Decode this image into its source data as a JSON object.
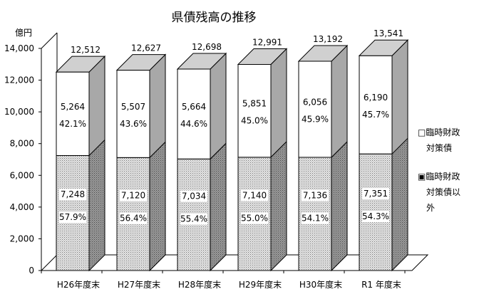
{
  "chart_data": {
    "type": "bar",
    "stacked": true,
    "style": "3d",
    "title": "県債残高の推移",
    "ylabel": "億円",
    "xlabel": "",
    "ylim": [
      0,
      14000
    ],
    "yticks": [
      "0",
      "2,000",
      "4,000",
      "6,000",
      "8,000",
      "10,000",
      "12,000",
      "14,000"
    ],
    "categories": [
      "H26年度末",
      "H27年度末",
      "H28年度末",
      "H29年度末",
      "H30年度末",
      "R1 年度末"
    ],
    "series": [
      {
        "name": "臨時財政対策債以外",
        "values": [
          7248,
          7120,
          7034,
          7140,
          7136,
          7351
        ],
        "value_labels": [
          "7,248",
          "7,120",
          "7,034",
          "7,140",
          "7,136",
          "7,351"
        ],
        "share_labels": [
          "57.9%",
          "56.4%",
          "55.4%",
          "55.0%",
          "54.1%",
          "54.3%"
        ],
        "fill": "dotted"
      },
      {
        "name": "臨時財政対策債",
        "values": [
          5264,
          5507,
          5664,
          5851,
          6056,
          6190
        ],
        "value_labels": [
          "5,264",
          "5,507",
          "5,664",
          "5,851",
          "6,056",
          "6,190"
        ],
        "share_labels": [
          "42.1%",
          "43.6%",
          "44.6%",
          "45.0%",
          "45.9%",
          "45.7%"
        ],
        "fill": "white"
      }
    ],
    "totals": [
      12512,
      12627,
      12698,
      12991,
      13192,
      13541
    ],
    "total_labels": [
      "12,512",
      "12,627",
      "12,698",
      "12,991",
      "13,192",
      "13,541"
    ],
    "legend": {
      "position": "right",
      "items": [
        {
          "symbol": "□",
          "lines": [
            "臨時財政",
            "対策債"
          ]
        },
        {
          "symbol": "▣",
          "lines": [
            "臨時財政",
            "対策債以",
            "外"
          ]
        }
      ]
    },
    "grid": false
  }
}
